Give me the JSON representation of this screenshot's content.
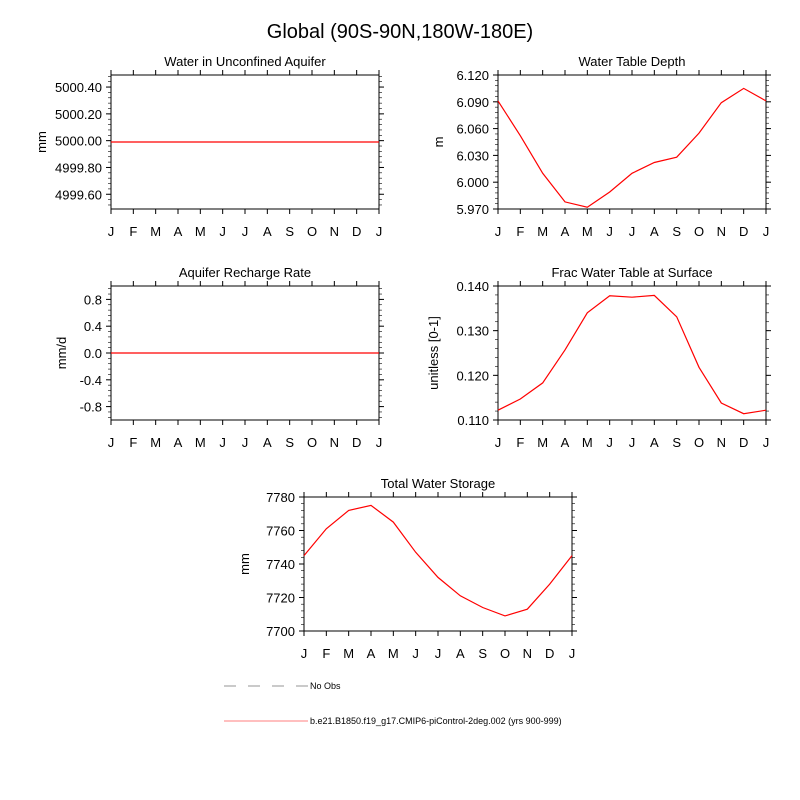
{
  "title": "Global (90S-90N,180W-180E)",
  "months": [
    "J",
    "F",
    "M",
    "A",
    "M",
    "J",
    "J",
    "A",
    "S",
    "O",
    "N",
    "D",
    "J"
  ],
  "line_color": "#ff0000",
  "chart_data": [
    {
      "type": "line",
      "title": "Water in Unconfined Aquifer",
      "ylabel": "mm",
      "ylim": [
        4999.49,
        5000.49
      ],
      "yticks": [
        4999.6,
        4999.8,
        5000.0,
        5000.2,
        5000.4
      ],
      "ytick_labels": [
        "4999.60",
        "4999.80",
        "5000.00",
        "5000.20",
        "5000.40"
      ],
      "values": [
        4999.99,
        4999.99,
        4999.99,
        4999.99,
        4999.99,
        4999.99,
        4999.99,
        4999.99,
        4999.99,
        4999.99,
        4999.99,
        4999.99,
        4999.99
      ]
    },
    {
      "type": "line",
      "title": "Water Table Depth",
      "ylabel": "m",
      "ylim": [
        5.97,
        6.12
      ],
      "yticks": [
        5.97,
        6.0,
        6.03,
        6.06,
        6.09,
        6.12
      ],
      "ytick_labels": [
        "5.970",
        "6.000",
        "6.030",
        "6.060",
        "6.090",
        "6.120"
      ],
      "values": [
        6.091,
        6.052,
        6.01,
        5.978,
        5.972,
        5.989,
        6.01,
        6.022,
        6.028,
        6.055,
        6.089,
        6.105,
        6.091
      ]
    },
    {
      "type": "line",
      "title": "Aquifer Recharge Rate",
      "ylabel": "mm/d",
      "ylim": [
        -1,
        1
      ],
      "yticks": [
        -0.8,
        -0.4,
        0,
        0.4,
        0.8
      ],
      "ytick_labels": [
        "-0.8",
        "-0.4",
        "0.0",
        "0.4",
        "0.8"
      ],
      "values": [
        0,
        0,
        0,
        0,
        0,
        0,
        0,
        0,
        0,
        0,
        0,
        0,
        0
      ]
    },
    {
      "type": "line",
      "title": "Frac Water Table at Surface",
      "ylabel": "unitless [0-1]",
      "ylim": [
        0.11,
        0.14
      ],
      "yticks": [
        0.11,
        0.12,
        0.13,
        0.14
      ],
      "ytick_labels": [
        "0.110",
        "0.120",
        "0.130",
        "0.140"
      ],
      "values": [
        0.1122,
        0.1147,
        0.1183,
        0.1257,
        0.134,
        0.1378,
        0.1375,
        0.1379,
        0.1331,
        0.1218,
        0.1138,
        0.1114,
        0.1122
      ]
    },
    {
      "type": "line",
      "title": "Total Water Storage",
      "ylabel": "mm",
      "ylim": [
        7700,
        7780
      ],
      "yticks": [
        7700,
        7720,
        7740,
        7760,
        7780
      ],
      "ytick_labels": [
        "7700",
        "7720",
        "7740",
        "7760",
        "7780"
      ],
      "values": [
        7745,
        7761,
        7772,
        7775,
        7765,
        7747,
        7732,
        7721,
        7714,
        7709,
        7713,
        7728,
        7745
      ]
    }
  ],
  "legend": [
    {
      "label": "No Obs",
      "color": "#aaaaaa",
      "style": "dashed"
    },
    {
      "label": "b.e21.B1850.f19_g17.CMIP6-piControl-2deg.002 (yrs 900-999)",
      "color": "#ff9999",
      "style": "solid"
    }
  ]
}
